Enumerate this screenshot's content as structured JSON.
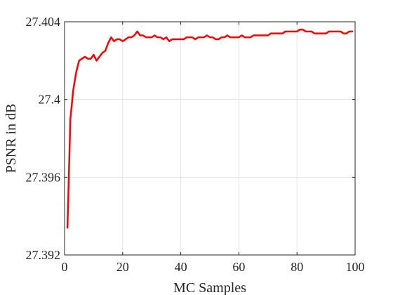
{
  "chart_data": {
    "type": "line",
    "title": "",
    "xlabel": "MC Samples",
    "ylabel": "PSNR in dB",
    "xlim": [
      0,
      100
    ],
    "ylim": [
      27.392,
      27.404
    ],
    "xticks": [
      0,
      20,
      40,
      60,
      80,
      100
    ],
    "yticks": [
      27.392,
      27.396,
      27.4,
      27.404
    ],
    "xtick_labels": [
      "0",
      "20",
      "40",
      "60",
      "80",
      "100"
    ],
    "ytick_labels": [
      "27.392",
      "27.396",
      "27.4",
      "27.404"
    ],
    "grid": true,
    "line_color": "#ff0000",
    "series": [
      {
        "x": [
          1,
          2,
          3,
          4,
          5,
          6,
          7,
          8,
          9,
          10,
          11,
          12,
          13,
          14,
          15,
          16,
          17,
          18,
          19,
          20,
          21,
          22,
          23,
          24,
          25,
          26,
          27,
          28,
          29,
          30,
          31,
          32,
          33,
          34,
          35,
          36,
          37,
          38,
          39,
          40,
          41,
          42,
          43,
          44,
          45,
          46,
          47,
          48,
          49,
          50,
          51,
          52,
          53,
          54,
          55,
          56,
          57,
          58,
          59,
          60,
          61,
          62,
          63,
          64,
          65,
          66,
          67,
          68,
          69,
          70,
          71,
          72,
          73,
          74,
          75,
          76,
          77,
          78,
          79,
          80,
          81,
          82,
          83,
          84,
          85,
          86,
          87,
          88,
          89,
          90,
          91,
          92,
          93,
          94,
          95,
          96,
          97,
          98,
          99
        ],
        "values": [
          27.3934,
          27.399,
          27.4005,
          27.4014,
          27.402,
          27.4021,
          27.4022,
          27.4021,
          27.4021,
          27.4023,
          27.402,
          27.4022,
          27.4024,
          27.4025,
          27.4029,
          27.4032,
          27.403,
          27.4031,
          27.4031,
          27.403,
          27.4031,
          27.4032,
          27.4032,
          27.4033,
          27.4035,
          27.4033,
          27.4033,
          27.4032,
          27.4032,
          27.4032,
          27.4033,
          27.4032,
          27.4032,
          27.4031,
          27.4032,
          27.403,
          27.4031,
          27.4031,
          27.4031,
          27.4031,
          27.4031,
          27.4032,
          27.4032,
          27.4032,
          27.4031,
          27.4032,
          27.4032,
          27.4032,
          27.4033,
          27.4032,
          27.4032,
          27.4031,
          27.4031,
          27.4032,
          27.4032,
          27.4033,
          27.4032,
          27.4032,
          27.4032,
          27.4032,
          27.4033,
          27.4032,
          27.4032,
          27.4032,
          27.4033,
          27.4033,
          27.4033,
          27.4033,
          27.4033,
          27.4033,
          27.4034,
          27.4034,
          27.4034,
          27.4034,
          27.4034,
          27.4035,
          27.4035,
          27.4035,
          27.4035,
          27.4035,
          27.4036,
          27.4036,
          27.4035,
          27.4035,
          27.4035,
          27.4034,
          27.4034,
          27.4034,
          27.4034,
          27.4034,
          27.4035,
          27.4035,
          27.4035,
          27.4035,
          27.4035,
          27.4034,
          27.4034,
          27.4035,
          27.4035
        ]
      }
    ]
  }
}
